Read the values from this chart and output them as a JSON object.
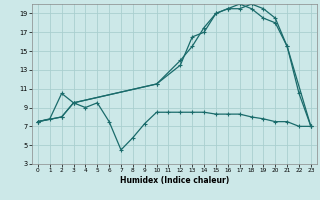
{
  "xlabel": "Humidex (Indice chaleur)",
  "bg_color": "#cce8e8",
  "grid_color": "#aacfcf",
  "line_color": "#1a6b6b",
  "xlim": [
    -0.5,
    23.5
  ],
  "ylim": [
    3,
    20
  ],
  "xticks": [
    0,
    1,
    2,
    3,
    4,
    5,
    6,
    7,
    8,
    9,
    10,
    11,
    12,
    13,
    14,
    15,
    16,
    17,
    18,
    19,
    20,
    21,
    22,
    23
  ],
  "yticks": [
    3,
    5,
    7,
    9,
    11,
    13,
    15,
    17,
    19
  ],
  "line1_x": [
    0,
    1,
    2,
    3,
    4,
    5,
    6,
    7,
    8,
    9,
    10,
    11,
    12,
    13,
    14,
    15,
    16,
    17,
    18,
    19,
    20,
    21,
    22,
    23
  ],
  "line1_y": [
    7.5,
    7.8,
    10.5,
    9.5,
    9.0,
    9.5,
    7.5,
    4.5,
    5.8,
    7.3,
    8.5,
    8.5,
    8.5,
    8.5,
    8.5,
    8.3,
    8.3,
    8.3,
    8.0,
    7.8,
    7.5,
    7.5,
    7.0,
    7.0
  ],
  "line2_x": [
    0,
    2,
    3,
    10,
    12,
    13,
    14,
    15,
    16,
    17,
    18,
    19,
    20,
    21,
    23
  ],
  "line2_y": [
    7.5,
    8.0,
    9.5,
    11.5,
    13.5,
    16.5,
    17.0,
    19.0,
    19.5,
    19.5,
    20.0,
    19.5,
    18.5,
    15.5,
    7.0
  ],
  "line3_x": [
    0,
    2,
    3,
    10,
    12,
    13,
    14,
    15,
    16,
    17,
    18,
    19,
    20,
    21,
    22,
    23
  ],
  "line3_y": [
    7.5,
    8.0,
    9.5,
    11.5,
    14.0,
    15.5,
    17.5,
    19.0,
    19.5,
    20.0,
    19.5,
    18.5,
    18.0,
    15.5,
    10.5,
    7.0
  ]
}
